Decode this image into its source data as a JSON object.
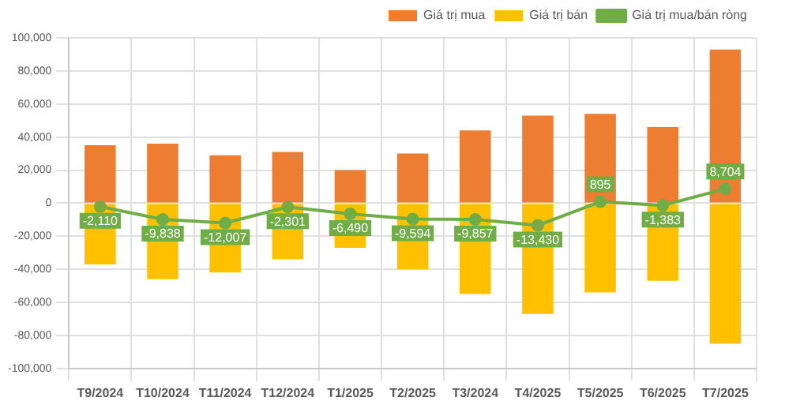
{
  "chart_data": {
    "type": "bar",
    "stacked": true,
    "categories": [
      "T9/2024",
      "T10/2024",
      "T11/2024",
      "T12/2024",
      "T1/2025",
      "T2/2025",
      "T3/2024",
      "T4/2025",
      "T5/2025",
      "T6/2025",
      "T7/2025"
    ],
    "series": [
      {
        "name": "Giá trị mua",
        "color": "#ed7d31",
        "values": [
          35000,
          36000,
          29000,
          31000,
          20000,
          30000,
          44000,
          53000,
          54000,
          46000,
          93000
        ]
      },
      {
        "name": "Giá trị bán",
        "color": "#ffc000",
        "values": [
          -37000,
          -46000,
          -42000,
          -34000,
          -27000,
          -40000,
          -55000,
          -67000,
          -54000,
          -47000,
          -85000
        ]
      },
      {
        "name": "Giá trị mua/bán ròng",
        "type": "line",
        "color": "#70ad47",
        "marker": "circle",
        "values": [
          -2110,
          -9838,
          -12007,
          -2301,
          -6490,
          -9594,
          -9857,
          -13430,
          895,
          -1383,
          8704
        ],
        "value_labels": [
          "-2,110",
          "-9,838",
          "-12,007",
          "-2,301",
          "-6,490",
          "-9,594",
          "-9,857",
          "-13,430",
          "895",
          "-1,383",
          "8,704"
        ]
      }
    ],
    "ylim": [
      -100000,
      100000
    ],
    "yticks": [
      {
        "value": -100000,
        "label": "-100,000"
      },
      {
        "value": -80000,
        "label": "-80,000"
      },
      {
        "value": -60000,
        "label": "-60,000"
      },
      {
        "value": -40000,
        "label": "-40,000"
      },
      {
        "value": -20000,
        "label": "-20,000"
      },
      0,
      {
        "value": 20000,
        "label": "20,000"
      },
      {
        "value": 40000,
        "label": "40,000"
      },
      {
        "value": 60000,
        "label": "60,000"
      },
      {
        "value": 80000,
        "label": "80,000"
      },
      {
        "value": 100000,
        "label": "100,000"
      }
    ],
    "grid": true,
    "legend": "top right"
  }
}
